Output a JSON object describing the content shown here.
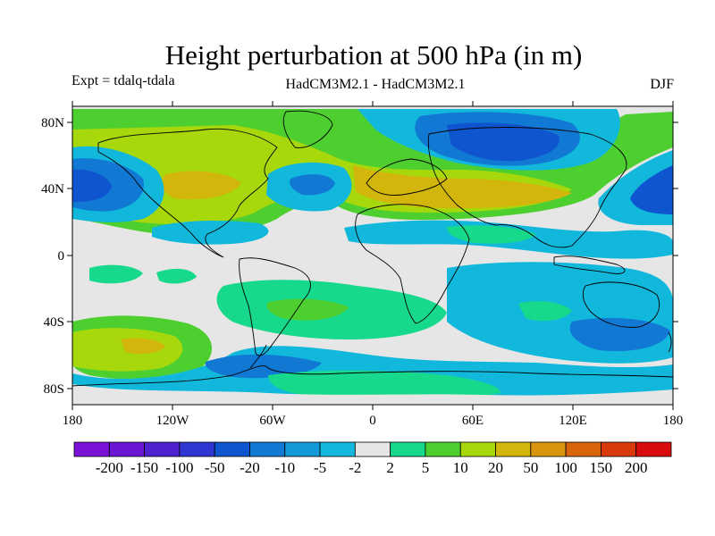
{
  "title": "Height perturbation at 500 hPa (in m)",
  "experiment_label": "Expt = tdalq-tdala",
  "model_label": "HadCM3M2.1 - HadCM3M2.1",
  "season_label": "DJF",
  "lat_ticks": [
    "80N",
    "40N",
    "0",
    "40S",
    "80S"
  ],
  "lon_ticks": [
    "180",
    "120W",
    "60W",
    "0",
    "60E",
    "120E",
    "180"
  ],
  "colorbar": {
    "labels": [
      "-200",
      "-150",
      "-100",
      "-50",
      "-20",
      "-10",
      "-5",
      "-2",
      "2",
      "5",
      "10",
      "20",
      "50",
      "100",
      "150",
      "200"
    ],
    "colors": [
      "#7a12d8",
      "#6a16d4",
      "#4f22cf",
      "#2f36d2",
      "#0f55d0",
      "#1178d4",
      "#129ad8",
      "#12b8dc",
      "#e6e6e6",
      "#16d98c",
      "#4ecf30",
      "#a6d80c",
      "#d2b60c",
      "#d8940c",
      "#d8640c",
      "#d83a0c",
      "#d80c0c"
    ]
  },
  "colors": {
    "background_field": "#e6e6e6",
    "coastline": "#000000"
  }
}
